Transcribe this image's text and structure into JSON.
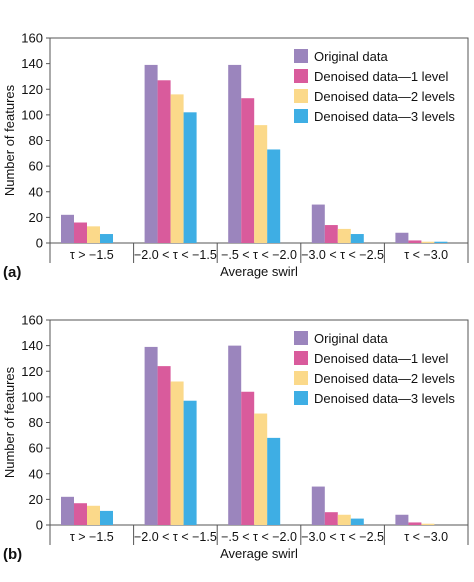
{
  "chart_data": [
    {
      "type": "bar",
      "panel_label": "(a)",
      "xlabel": "Average swirl",
      "ylabel": "Number of features",
      "ylim": [
        0,
        160
      ],
      "yticks": [
        0,
        20,
        40,
        60,
        80,
        100,
        120,
        140,
        160
      ],
      "grid": false,
      "legend_position": "top-right",
      "categories": [
        "τ > −1.5",
        "−2.0 < τ < −1.5",
        "−.5 < τ < −2.0",
        "−3.0 < τ < −2.5",
        "τ < −3.0"
      ],
      "series": [
        {
          "name": "Original data",
          "color": "#9b85bd",
          "values": [
            22,
            139,
            139,
            30,
            8
          ]
        },
        {
          "name": "Denoised data—1 level",
          "color": "#d95b9c",
          "values": [
            16,
            127,
            113,
            14,
            2
          ]
        },
        {
          "name": "Denoised data—2 levels",
          "color": "#fbd98a",
          "values": [
            13,
            116,
            92,
            11,
            1
          ]
        },
        {
          "name": "Denoised data—3 levels",
          "color": "#3eaee4",
          "values": [
            7,
            102,
            73,
            7,
            1
          ]
        }
      ]
    },
    {
      "type": "bar",
      "panel_label": "(b)",
      "xlabel": "Average swirl",
      "ylabel": "Number of features",
      "ylim": [
        0,
        160
      ],
      "yticks": [
        0,
        20,
        40,
        60,
        80,
        100,
        120,
        140,
        160
      ],
      "grid": false,
      "legend_position": "top-right",
      "categories": [
        "τ > −1.5",
        "−2.0 < τ < −1.5",
        "−.5 < τ < −2.0",
        "−3.0 < τ < −2.5",
        "τ < −3.0"
      ],
      "series": [
        {
          "name": "Original data",
          "color": "#9b85bd",
          "values": [
            22,
            139,
            140,
            30,
            8
          ]
        },
        {
          "name": "Denoised data—1 level",
          "color": "#d95b9c",
          "values": [
            17,
            124,
            104,
            10,
            2
          ]
        },
        {
          "name": "Denoised data—2 levels",
          "color": "#fbd98a",
          "values": [
            15,
            112,
            87,
            8,
            1
          ]
        },
        {
          "name": "Denoised data—3 levels",
          "color": "#3eaee4",
          "values": [
            11,
            97,
            68,
            5,
            0
          ]
        }
      ]
    }
  ]
}
